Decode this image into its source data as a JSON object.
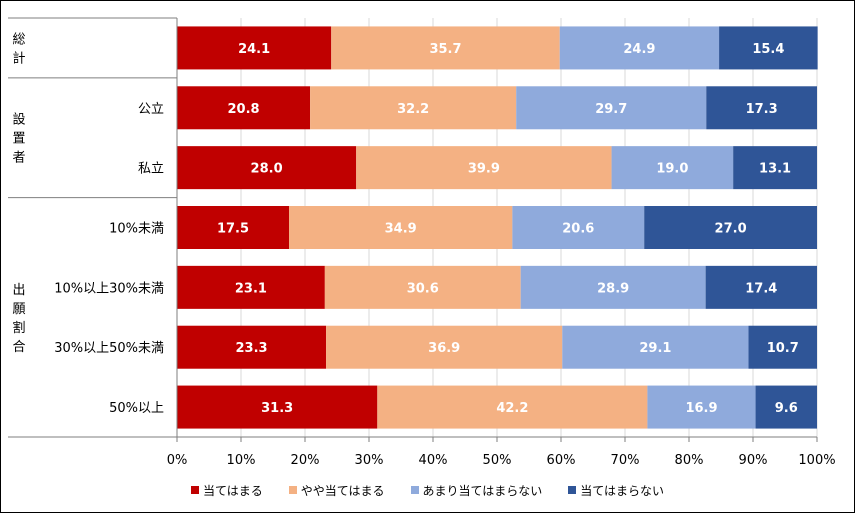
{
  "chart_data": {
    "type": "bar",
    "orientation": "horizontal",
    "stacked": true,
    "percent": true,
    "groups": [
      {
        "name": "総計",
        "rows": [
          ""
        ]
      },
      {
        "name": "設置者",
        "rows": [
          "公立",
          "私立"
        ]
      },
      {
        "name": "出願割合",
        "rows": [
          "10%未満",
          "10%以上30%未満",
          "30%以上50%未満",
          "50%以上"
        ]
      }
    ],
    "categories": [
      "",
      "公立",
      "私立",
      "10%未満",
      "10%以上30%未満",
      "30%以上50%未満",
      "50%以上"
    ],
    "series": [
      {
        "name": "当てはまる",
        "color": "#C00000",
        "text_color": "#ffffff",
        "values": [
          24.1,
          20.8,
          28.0,
          17.5,
          23.1,
          23.3,
          31.3
        ]
      },
      {
        "name": "やや当てはまる",
        "color": "#F4B183",
        "text_color": "#ffffff",
        "values": [
          35.7,
          32.2,
          39.9,
          34.9,
          30.6,
          36.9,
          42.2
        ]
      },
      {
        "name": "あまり当てはまらない",
        "color": "#8FAADC",
        "text_color": "#ffffff",
        "values": [
          24.9,
          29.7,
          19.0,
          20.6,
          28.9,
          29.1,
          16.9
        ]
      },
      {
        "name": "当てはまらない",
        "color": "#2F5597",
        "text_color": "#ffffff",
        "values": [
          15.4,
          17.3,
          13.1,
          27.0,
          17.4,
          10.7,
          9.6
        ]
      }
    ],
    "value_labels": [
      [
        "24.1",
        "20.8",
        "28.0",
        "17.5",
        "23.1",
        "23.3",
        "31.3"
      ],
      [
        "35.7",
        "32.2",
        "39.9",
        "34.9",
        "30.6",
        "36.9",
        "42.2"
      ],
      [
        "24.9",
        "29.7",
        "19.0",
        "20.6",
        "28.9",
        "29.1",
        "16.9"
      ],
      [
        "15.4",
        "17.3",
        "13.1",
        "27.0",
        "17.4",
        "10.7",
        "9.6"
      ]
    ],
    "xticks": [
      "0%",
      "10%",
      "20%",
      "30%",
      "40%",
      "50%",
      "60%",
      "70%",
      "80%",
      "90%",
      "100%"
    ],
    "xlim": [
      0,
      100
    ],
    "grid": true,
    "legend_position": "bottom"
  }
}
